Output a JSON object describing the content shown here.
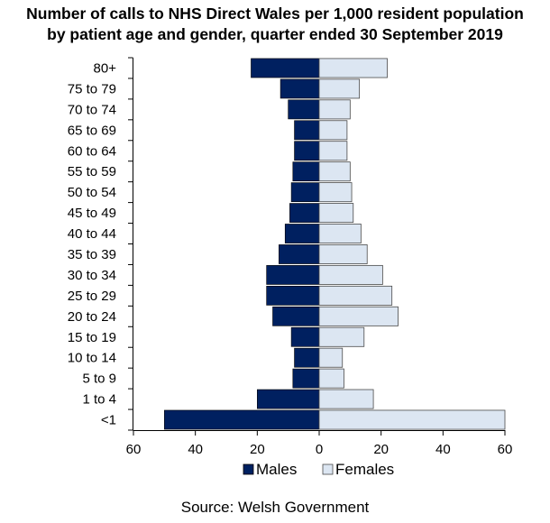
{
  "chart_data": {
    "type": "bar",
    "orientation": "horizontal-population-pyramid",
    "title_lines": [
      "Number of calls to NHS  Direct Wales per 1,000 resident population",
      "by patient age and gender, quarter ended 30 September 2019"
    ],
    "categories": [
      "80+",
      "75 to 79",
      "70 to 74",
      "65 to 69",
      "60 to 64",
      "55 to 59",
      "50 to 54",
      "45 to 49",
      "40 to 44",
      "35 to 39",
      "30 to 34",
      "25 to 29",
      "20 to 24",
      "15 to 19",
      "10 to 14",
      "5 to 9",
      "1 to 4",
      "<1"
    ],
    "series": [
      {
        "name": "Males",
        "color": "#002060",
        "values": [
          22,
          12.5,
          10,
          8,
          8,
          8.5,
          9,
          9.5,
          11,
          13,
          17,
          17,
          15,
          9,
          8,
          8.5,
          20,
          50
        ]
      },
      {
        "name": "Females",
        "color": "#dce6f2",
        "values": [
          22,
          13,
          10,
          9,
          9,
          10,
          10.5,
          11,
          13.5,
          15.5,
          20.5,
          23.5,
          25.5,
          14.5,
          7.5,
          8,
          17.5,
          60
        ]
      }
    ],
    "xlim": [
      -60,
      60
    ],
    "xticks": [
      -60,
      -40,
      -20,
      0,
      20,
      40,
      60
    ],
    "xtick_labels": [
      "60",
      "40",
      "20",
      "0",
      "20",
      "40",
      "60"
    ],
    "grid": false,
    "legend": "bottom",
    "source": "Source: Welsh Government"
  }
}
